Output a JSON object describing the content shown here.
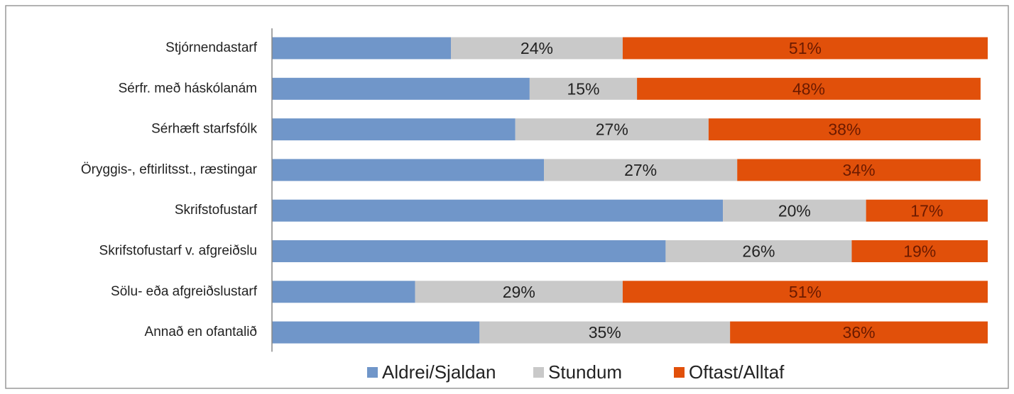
{
  "chart_data": {
    "type": "stacked-bar-horizontal",
    "categories": [
      "Stjórnendastarf",
      "Sérfr. með háskólanám",
      "Sérhæft starfsfólk",
      "Öryggis-, eftirlitsst., ræstingar",
      "Skrifstofustarf",
      "Skrifstofustarf v. afgreiðslu",
      "Sölu- eða afgreiðslustarf",
      "Annað en ofantalið"
    ],
    "xlim": [
      0,
      100
    ],
    "legend": "bottom",
    "series": [
      {
        "name": "Aldrei/Sjaldan",
        "color": "#7096c9",
        "values": [
          25,
          36,
          34,
          38,
          63,
          55,
          20,
          29
        ]
      },
      {
        "name": "Stundum",
        "color": "#c9c9c9",
        "values": [
          24,
          15,
          27,
          27,
          20,
          26,
          29,
          35
        ],
        "value_labels": [
          "24%",
          "15%",
          "27%",
          "27%",
          "20%",
          "26%",
          "29%",
          "35%"
        ],
        "label_color": "#222222"
      },
      {
        "name": "Oftast/Alltaf",
        "color": "#e1500a",
        "values": [
          51,
          48,
          38,
          34,
          17,
          19,
          51,
          36
        ],
        "value_labels": [
          "51%",
          "48%",
          "38%",
          "34%",
          "17%",
          "19%",
          "51%",
          "36%"
        ],
        "label_color": "#6b1a00"
      }
    ]
  }
}
